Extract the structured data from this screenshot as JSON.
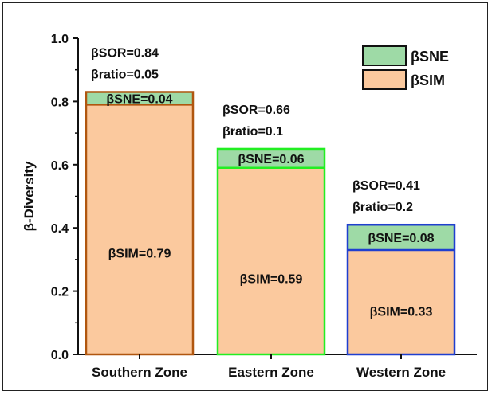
{
  "chart_data": {
    "type": "bar",
    "stacked": true,
    "ylabel": "β-Diversity",
    "xlabel": "",
    "ylim": [
      0,
      1.0
    ],
    "yticks": [
      "0.0",
      "0.2",
      "0.4",
      "0.6",
      "0.8",
      "1.0"
    ],
    "categories": [
      "Southern Zone",
      "Eastern Zone",
      "Western Zone"
    ],
    "series": [
      {
        "name": "βSIM",
        "values": [
          0.79,
          0.59,
          0.33
        ],
        "color": "#fbc99e"
      },
      {
        "name": "βSNE",
        "values": [
          0.04,
          0.06,
          0.08
        ],
        "color": "#9edaa6"
      }
    ],
    "bar_edge_colors": [
      "#b0560f",
      "#22ee22",
      "#1f3fcf"
    ],
    "legend": {
      "position": "top-right",
      "entries": [
        "βSNE",
        "βSIM"
      ]
    },
    "annotations": {
      "sim_labels": [
        "βSIM=0.79",
        "βSIM=0.59",
        "βSIM=0.33"
      ],
      "sne_labels": [
        "βSNE=0.04",
        "βSNE=0.06",
        "βSNE=0.08"
      ],
      "sor_labels": [
        "βSOR=0.84",
        "βSOR=0.66",
        "βSOR=0.41"
      ],
      "ratio_labels": [
        "βratio=0.05",
        "βratio=0.1",
        "βratio=0.2"
      ]
    }
  }
}
